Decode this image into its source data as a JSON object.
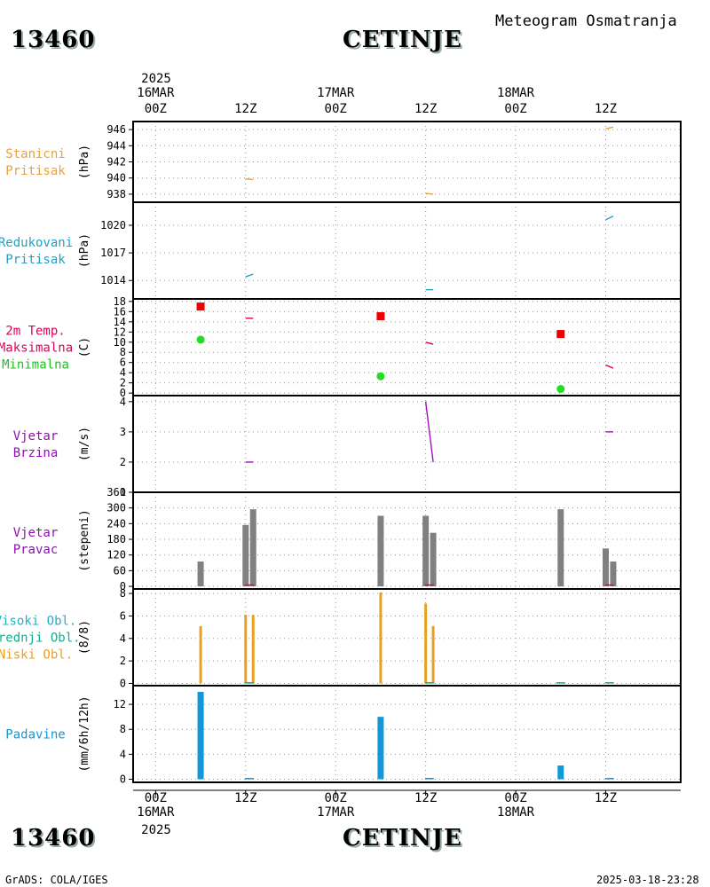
{
  "header": {
    "station_id": "13460",
    "station_name": "CETINJE",
    "subtitle": "Meteogram Osmatranja"
  },
  "footer": {
    "station_id": "13460",
    "station_name": "CETINJE",
    "credit": "GrADS: COLA/IGES",
    "timestamp": "2025-03-18-23:28"
  },
  "time_axis": {
    "year": "2025",
    "ticks": [
      {
        "h": 0,
        "label": "00Z",
        "date": "16MAR"
      },
      {
        "h": 12,
        "label": "12Z",
        "date": ""
      },
      {
        "h": 24,
        "label": "00Z",
        "date": "17MAR"
      },
      {
        "h": 36,
        "label": "12Z",
        "date": ""
      },
      {
        "h": 48,
        "label": "00Z",
        "date": "18MAR"
      },
      {
        "h": 60,
        "label": "12Z",
        "date": ""
      }
    ],
    "range_hours": [
      -3,
      70
    ]
  },
  "chart_data": [
    {
      "id": "stanicni",
      "type": "line",
      "labels": [
        "Stanicni",
        "Pritisak"
      ],
      "label_colors": [
        "#e8a040",
        "#e8a040"
      ],
      "ylabel": "(hPa)",
      "ylim": [
        937,
        947
      ],
      "yticks": [
        938,
        940,
        942,
        944,
        946
      ],
      "series": [
        {
          "color": "#e8a040",
          "segments": [
            [
              [
                12.0,
                939.9
              ],
              [
                13.0,
                939.8
              ]
            ],
            [
              [
                36.0,
                938.1
              ],
              [
                37.0,
                938.0
              ]
            ],
            [
              [
                60.0,
                946.1
              ],
              [
                61.0,
                946.3
              ]
            ]
          ]
        }
      ]
    },
    {
      "id": "redukovani",
      "type": "line",
      "labels": [
        "Redukovani",
        "Pritisak"
      ],
      "label_colors": [
        "#20a0c8",
        "#20a0c8"
      ],
      "ylabel": "(hPa)",
      "ylim": [
        1012,
        1022.5
      ],
      "yticks": [
        1014,
        1017,
        1020
      ],
      "series": [
        {
          "color": "#20a0c8",
          "segments": [
            [
              [
                12.0,
                1014.4
              ],
              [
                13.0,
                1014.7
              ]
            ],
            [
              [
                36.0,
                1013.0
              ],
              [
                37.0,
                1013.0
              ]
            ],
            [
              [
                60.0,
                1020.6
              ],
              [
                61.0,
                1021.0
              ]
            ]
          ]
        }
      ]
    },
    {
      "id": "temp",
      "type": "line",
      "labels": [
        "2m Temp.",
        "Maksimalna",
        "Minimalna"
      ],
      "label_colors": [
        "#e0005a",
        "#e0005a",
        "#20c020"
      ],
      "ylabel": "(C)",
      "ylim": [
        -0.5,
        18.5
      ],
      "yticks": [
        0,
        2,
        4,
        6,
        8,
        10,
        12,
        14,
        16,
        18
      ],
      "series": [
        {
          "color": "#e0005a",
          "segments": [
            [
              [
                12.0,
                14.7
              ],
              [
                13.0,
                14.7
              ]
            ],
            [
              [
                36.0,
                10.0
              ],
              [
                37.0,
                9.6
              ]
            ],
            [
              [
                60.0,
                5.5
              ],
              [
                61.0,
                4.9
              ]
            ]
          ]
        }
      ],
      "max_points": [
        {
          "h": 6,
          "v": 17.0
        },
        {
          "h": 30,
          "v": 15.1
        },
        {
          "h": 54,
          "v": 11.6
        }
      ],
      "min_points": [
        {
          "h": 6,
          "v": 10.5
        },
        {
          "h": 30,
          "v": 3.3
        },
        {
          "h": 54,
          "v": 0.8
        }
      ]
    },
    {
      "id": "brzina",
      "type": "line",
      "labels": [
        "Vjetar",
        "Brzina"
      ],
      "label_colors": [
        "#9010b0",
        "#9010b0"
      ],
      "ylabel": "(m/s)",
      "ylim": [
        1,
        4.2
      ],
      "yticks": [
        1,
        2,
        3,
        4
      ],
      "series": [
        {
          "color": "#a010c0",
          "segments": [
            [
              [
                12.0,
                2.0
              ],
              [
                13.0,
                2.0
              ]
            ],
            [
              [
                36.0,
                4.0
              ],
              [
                37.0,
                2.0
              ]
            ],
            [
              [
                60.0,
                3.0
              ],
              [
                61.0,
                3.0
              ]
            ]
          ]
        }
      ]
    },
    {
      "id": "pravac",
      "type": "bar",
      "labels": [
        "Vjetar",
        "Pravac"
      ],
      "label_colors": [
        "#9010b0",
        "#9010b0"
      ],
      "ylabel": "(stepeni)",
      "ylim": [
        -10,
        360
      ],
      "yticks": [
        0,
        60,
        120,
        180,
        240,
        300,
        360
      ],
      "bars": [
        {
          "h": 6,
          "v": 95,
          "color": "#808080"
        },
        {
          "h": 12,
          "v": 235,
          "color": "#808080"
        },
        {
          "h": 13,
          "v": 295,
          "color": "#808080"
        },
        {
          "h": 30,
          "v": 270,
          "color": "#808080"
        },
        {
          "h": 36,
          "v": 270,
          "color": "#808080"
        },
        {
          "h": 37,
          "v": 205,
          "color": "#808080"
        },
        {
          "h": 54,
          "v": 295,
          "color": "#808080"
        },
        {
          "h": 60,
          "v": 145,
          "color": "#808080"
        },
        {
          "h": 61,
          "v": 95,
          "color": "#808080"
        }
      ],
      "markers": [
        {
          "h": 12.5,
          "v": 5,
          "color": "#e0005a"
        },
        {
          "h": 36.5,
          "v": 5,
          "color": "#e0005a"
        },
        {
          "h": 60.5,
          "v": 5,
          "color": "#e0005a"
        }
      ]
    },
    {
      "id": "oblacnost",
      "type": "bar",
      "labels": [
        "Visoki Obl.",
        "Srednji Obl.",
        "Niski Obl."
      ],
      "label_colors": [
        "#20b0c8",
        "#10b090",
        "#e8a020"
      ],
      "ylabel": "(8/8)",
      "ylim": [
        -0.2,
        8.4
      ],
      "yticks": [
        0,
        2,
        4,
        6,
        8
      ],
      "bars": [
        {
          "h": 6,
          "v": 5.1,
          "color": "#e8a020"
        },
        {
          "h": 12,
          "v": 6.1,
          "color": "#e8a020"
        },
        {
          "h": 13,
          "v": 6.1,
          "color": "#e8a020"
        },
        {
          "h": 30,
          "v": 8.1,
          "color": "#e8a020"
        },
        {
          "h": 36,
          "v": 7.1,
          "color": "#e8a020"
        },
        {
          "h": 37,
          "v": 5.1,
          "color": "#e8a020"
        }
      ],
      "markers": [
        {
          "h": 12.5,
          "v": 0.05,
          "color": "#10b090"
        },
        {
          "h": 36.5,
          "v": 0.05,
          "color": "#10b090"
        },
        {
          "h": 54,
          "v": 0.05,
          "color": "#10b090"
        },
        {
          "h": 60.5,
          "v": 0.05,
          "color": "#10b090"
        }
      ]
    },
    {
      "id": "padavine",
      "type": "bar",
      "labels": [
        "Padavine"
      ],
      "label_colors": [
        "#1098d8"
      ],
      "ylabel": "(mm/6h/12h)",
      "ylim": [
        -0.5,
        15
      ],
      "yticks": [
        0,
        4,
        8,
        12
      ],
      "bars": [
        {
          "h": 6,
          "v": 14.0,
          "color": "#1098d8"
        },
        {
          "h": 30,
          "v": 10.0,
          "color": "#1098d8"
        },
        {
          "h": 54,
          "v": 2.2,
          "color": "#1098d8"
        }
      ],
      "markers": [
        {
          "h": 12.5,
          "v": 0.1,
          "color": "#1098d8"
        },
        {
          "h": 36.5,
          "v": 0.1,
          "color": "#1098d8"
        },
        {
          "h": 60.5,
          "v": 0.1,
          "color": "#1098d8"
        }
      ]
    }
  ]
}
